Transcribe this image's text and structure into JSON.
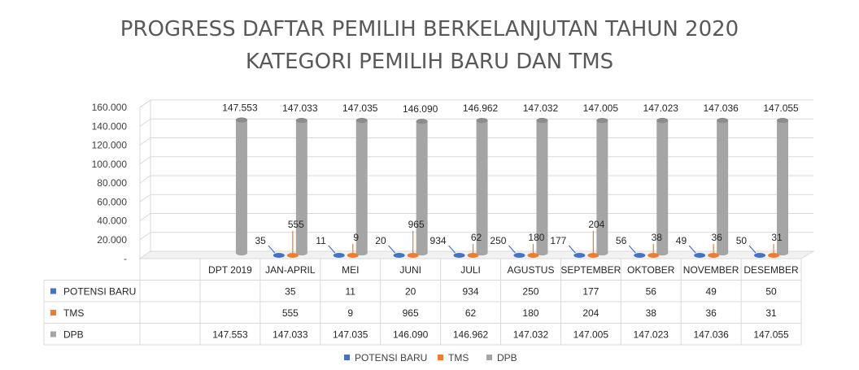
{
  "chart_data": {
    "type": "bar",
    "title": "PROGRESS DAFTAR PEMILIH BERKELANJUTAN TAHUN 2020",
    "subtitle": "KATEGORI PEMILIH BARU DAN TMS",
    "categories": [
      "DPT 2019",
      "JAN-APRIL",
      "MEI",
      "JUNI",
      "JULI",
      "AGUSTUS",
      "SEPTEMBER",
      "OKTOBER",
      "NOVEMBER",
      "DESEMBER"
    ],
    "y_ticks": [
      "160.000",
      "140.000",
      "120.000",
      "100.000",
      "80.000",
      "60.000",
      "40.000",
      "20.000",
      "-"
    ],
    "ylim": [
      0,
      160000
    ],
    "series": [
      {
        "name": "POTENSI BARU",
        "color": "#4472C4",
        "values": [
          null,
          35,
          11,
          20,
          934,
          250,
          177,
          56,
          49,
          50
        ],
        "labels": [
          "",
          "35",
          "11",
          "20",
          "934",
          "250",
          "177",
          "56",
          "49",
          "50"
        ]
      },
      {
        "name": "TMS",
        "color": "#ED7D31",
        "values": [
          null,
          555,
          9,
          965,
          62,
          180,
          204,
          38,
          36,
          31
        ],
        "labels": [
          "",
          "555",
          "9",
          "965",
          "62",
          "180",
          "204",
          "38",
          "36",
          "31"
        ]
      },
      {
        "name": "DPB",
        "color": "#A5A5A5",
        "values": [
          147553,
          147033,
          147035,
          146090,
          146962,
          147032,
          147005,
          147023,
          147036,
          147055
        ],
        "labels": [
          "147.553",
          "147.033",
          "147.035",
          "146.090",
          "146.962",
          "147.032",
          "147.005",
          "147.023",
          "147.036",
          "147.055"
        ]
      }
    ],
    "legend_position": "bottom",
    "data_table": true
  }
}
